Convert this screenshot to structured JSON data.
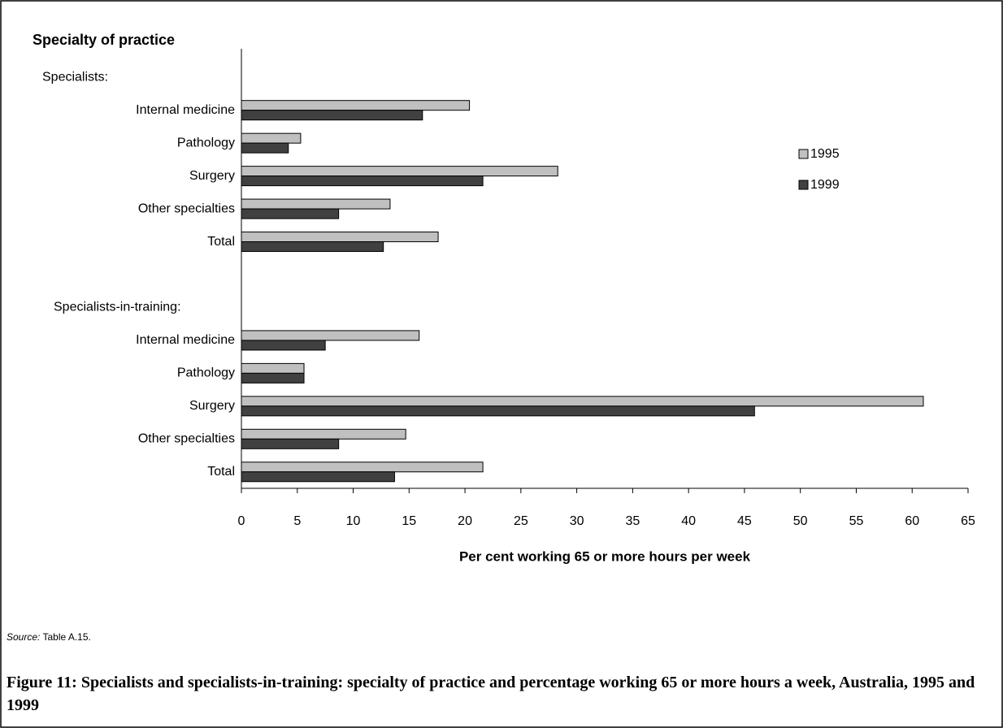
{
  "chart_data": {
    "type": "hbar",
    "y_axis_label": "Specialty of practice",
    "x_axis_label": "Per cent working 65 or more hours per week",
    "groups": [
      {
        "label": "Specialists:",
        "categories": [
          "Internal medicine",
          "Pathology",
          "Surgery",
          "Other specialties",
          "Total"
        ]
      },
      {
        "label": "Specialists-in-training:",
        "categories": [
          "Internal medicine",
          "Pathology",
          "Surgery",
          "Other specialties",
          "Total"
        ]
      }
    ],
    "series": [
      {
        "name": "1995",
        "color": "#c0c0c0",
        "values": [
          20.4,
          5.3,
          28.3,
          13.3,
          17.6,
          15.9,
          5.6,
          61.0,
          14.7,
          21.6
        ]
      },
      {
        "name": "1999",
        "color": "#404040",
        "values": [
          16.2,
          4.2,
          21.6,
          8.7,
          12.7,
          7.5,
          5.6,
          45.9,
          8.7,
          13.7
        ]
      }
    ],
    "xlim": [
      0,
      65
    ],
    "xticks": [
      0,
      5,
      10,
      15,
      20,
      25,
      30,
      35,
      40,
      45,
      50,
      55,
      60,
      65
    ],
    "legend": "right"
  },
  "source_label": "Source:",
  "source_text": "Table A.15.",
  "caption": "Figure 11: Specialists and specialists-in-training: specialty of practice and percentage working 65 or more hours a week, Australia, 1995 and 1999"
}
